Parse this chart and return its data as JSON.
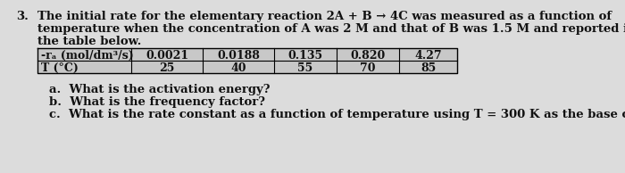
{
  "number": "3.",
  "para_line1": "The initial rate for the elementary reaction 2A + B → 4C was measured as a function of",
  "para_line2": "temperature when the concentration of A was 2 M and that of B was 1.5 M and reported in",
  "para_line3": "the table below.",
  "table_headers": [
    "-rₐ (mol/dm³/s)",
    "0.0021",
    "0.0188",
    "0.135",
    "0.820",
    "4.27"
  ],
  "table_row2": [
    "T (°C)",
    "25",
    "40",
    "55",
    "70",
    "85"
  ],
  "q_a": "a.  What is the activation energy?",
  "q_b": "b.  What is the frequency factor?",
  "q_c": "c.  What is the rate constant as a function of temperature using T = 300 K as the base case?",
  "bg_color": "#dcdcdc",
  "table_bg": "#c8c8c8",
  "text_color": "#111111",
  "font_size_body": 9.5,
  "font_size_table": 9.0,
  "font_size_num": 9.5
}
